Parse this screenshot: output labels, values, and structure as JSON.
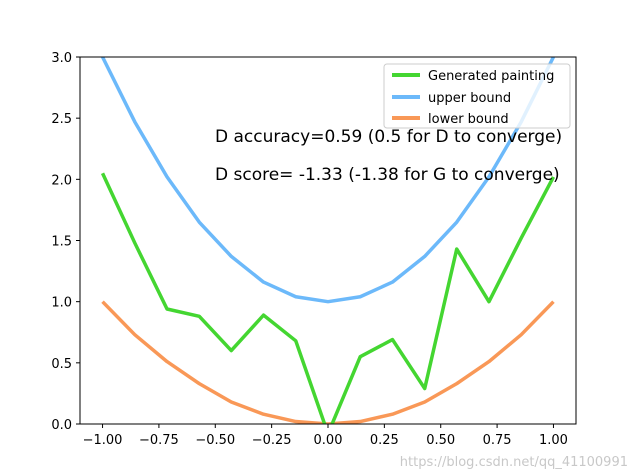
{
  "chart_data": {
    "type": "line",
    "x": [
      -1.0,
      -0.857,
      -0.714,
      -0.571,
      -0.429,
      -0.286,
      -0.143,
      0.0,
      0.143,
      0.286,
      0.429,
      0.571,
      0.714,
      0.857,
      1.0
    ],
    "series": [
      {
        "name": "Generated painting",
        "color": "#44d631",
        "values": [
          2.05,
          1.48,
          0.94,
          0.88,
          0.6,
          0.89,
          0.68,
          -0.08,
          0.55,
          0.69,
          0.29,
          1.43,
          1.0,
          1.52,
          2.02
        ]
      },
      {
        "name": "upper bound",
        "color": "#6cb9fa",
        "values": [
          3.0,
          2.47,
          2.02,
          1.65,
          1.37,
          1.16,
          1.04,
          1.0,
          1.04,
          1.16,
          1.37,
          1.65,
          2.02,
          2.47,
          3.0
        ]
      },
      {
        "name": "lower bound",
        "color": "#f99857",
        "values": [
          1.0,
          0.73,
          0.51,
          0.33,
          0.18,
          0.08,
          0.02,
          0.0,
          0.02,
          0.08,
          0.18,
          0.33,
          0.51,
          0.73,
          1.0
        ]
      }
    ],
    "xlim": [
      -1.1,
      1.1
    ],
    "ylim": [
      0,
      3.0
    ],
    "xticks": [
      "−1.00",
      "−0.75",
      "−0.50",
      "−0.25",
      "0.00",
      "0.25",
      "0.50",
      "0.75",
      "1.00"
    ],
    "xtick_values": [
      -1.0,
      -0.75,
      -0.5,
      -0.25,
      0.0,
      0.25,
      0.5,
      0.75,
      1.0
    ],
    "yticks": [
      "0.0",
      "0.5",
      "1.0",
      "1.5",
      "2.0",
      "2.5",
      "3.0"
    ],
    "ytick_values": [
      0.0,
      0.5,
      1.0,
      1.5,
      2.0,
      2.5,
      3.0
    ],
    "grid": false,
    "legend_position": "top-right",
    "annotations": [
      "D accuracy=0.59 (0.5 for D to converge)",
      "D score= -1.33 (-1.38 for G to converge)"
    ],
    "title": "",
    "xlabel": "",
    "ylabel": ""
  },
  "watermark": "https://blog.csdn.net/qq_41100991"
}
